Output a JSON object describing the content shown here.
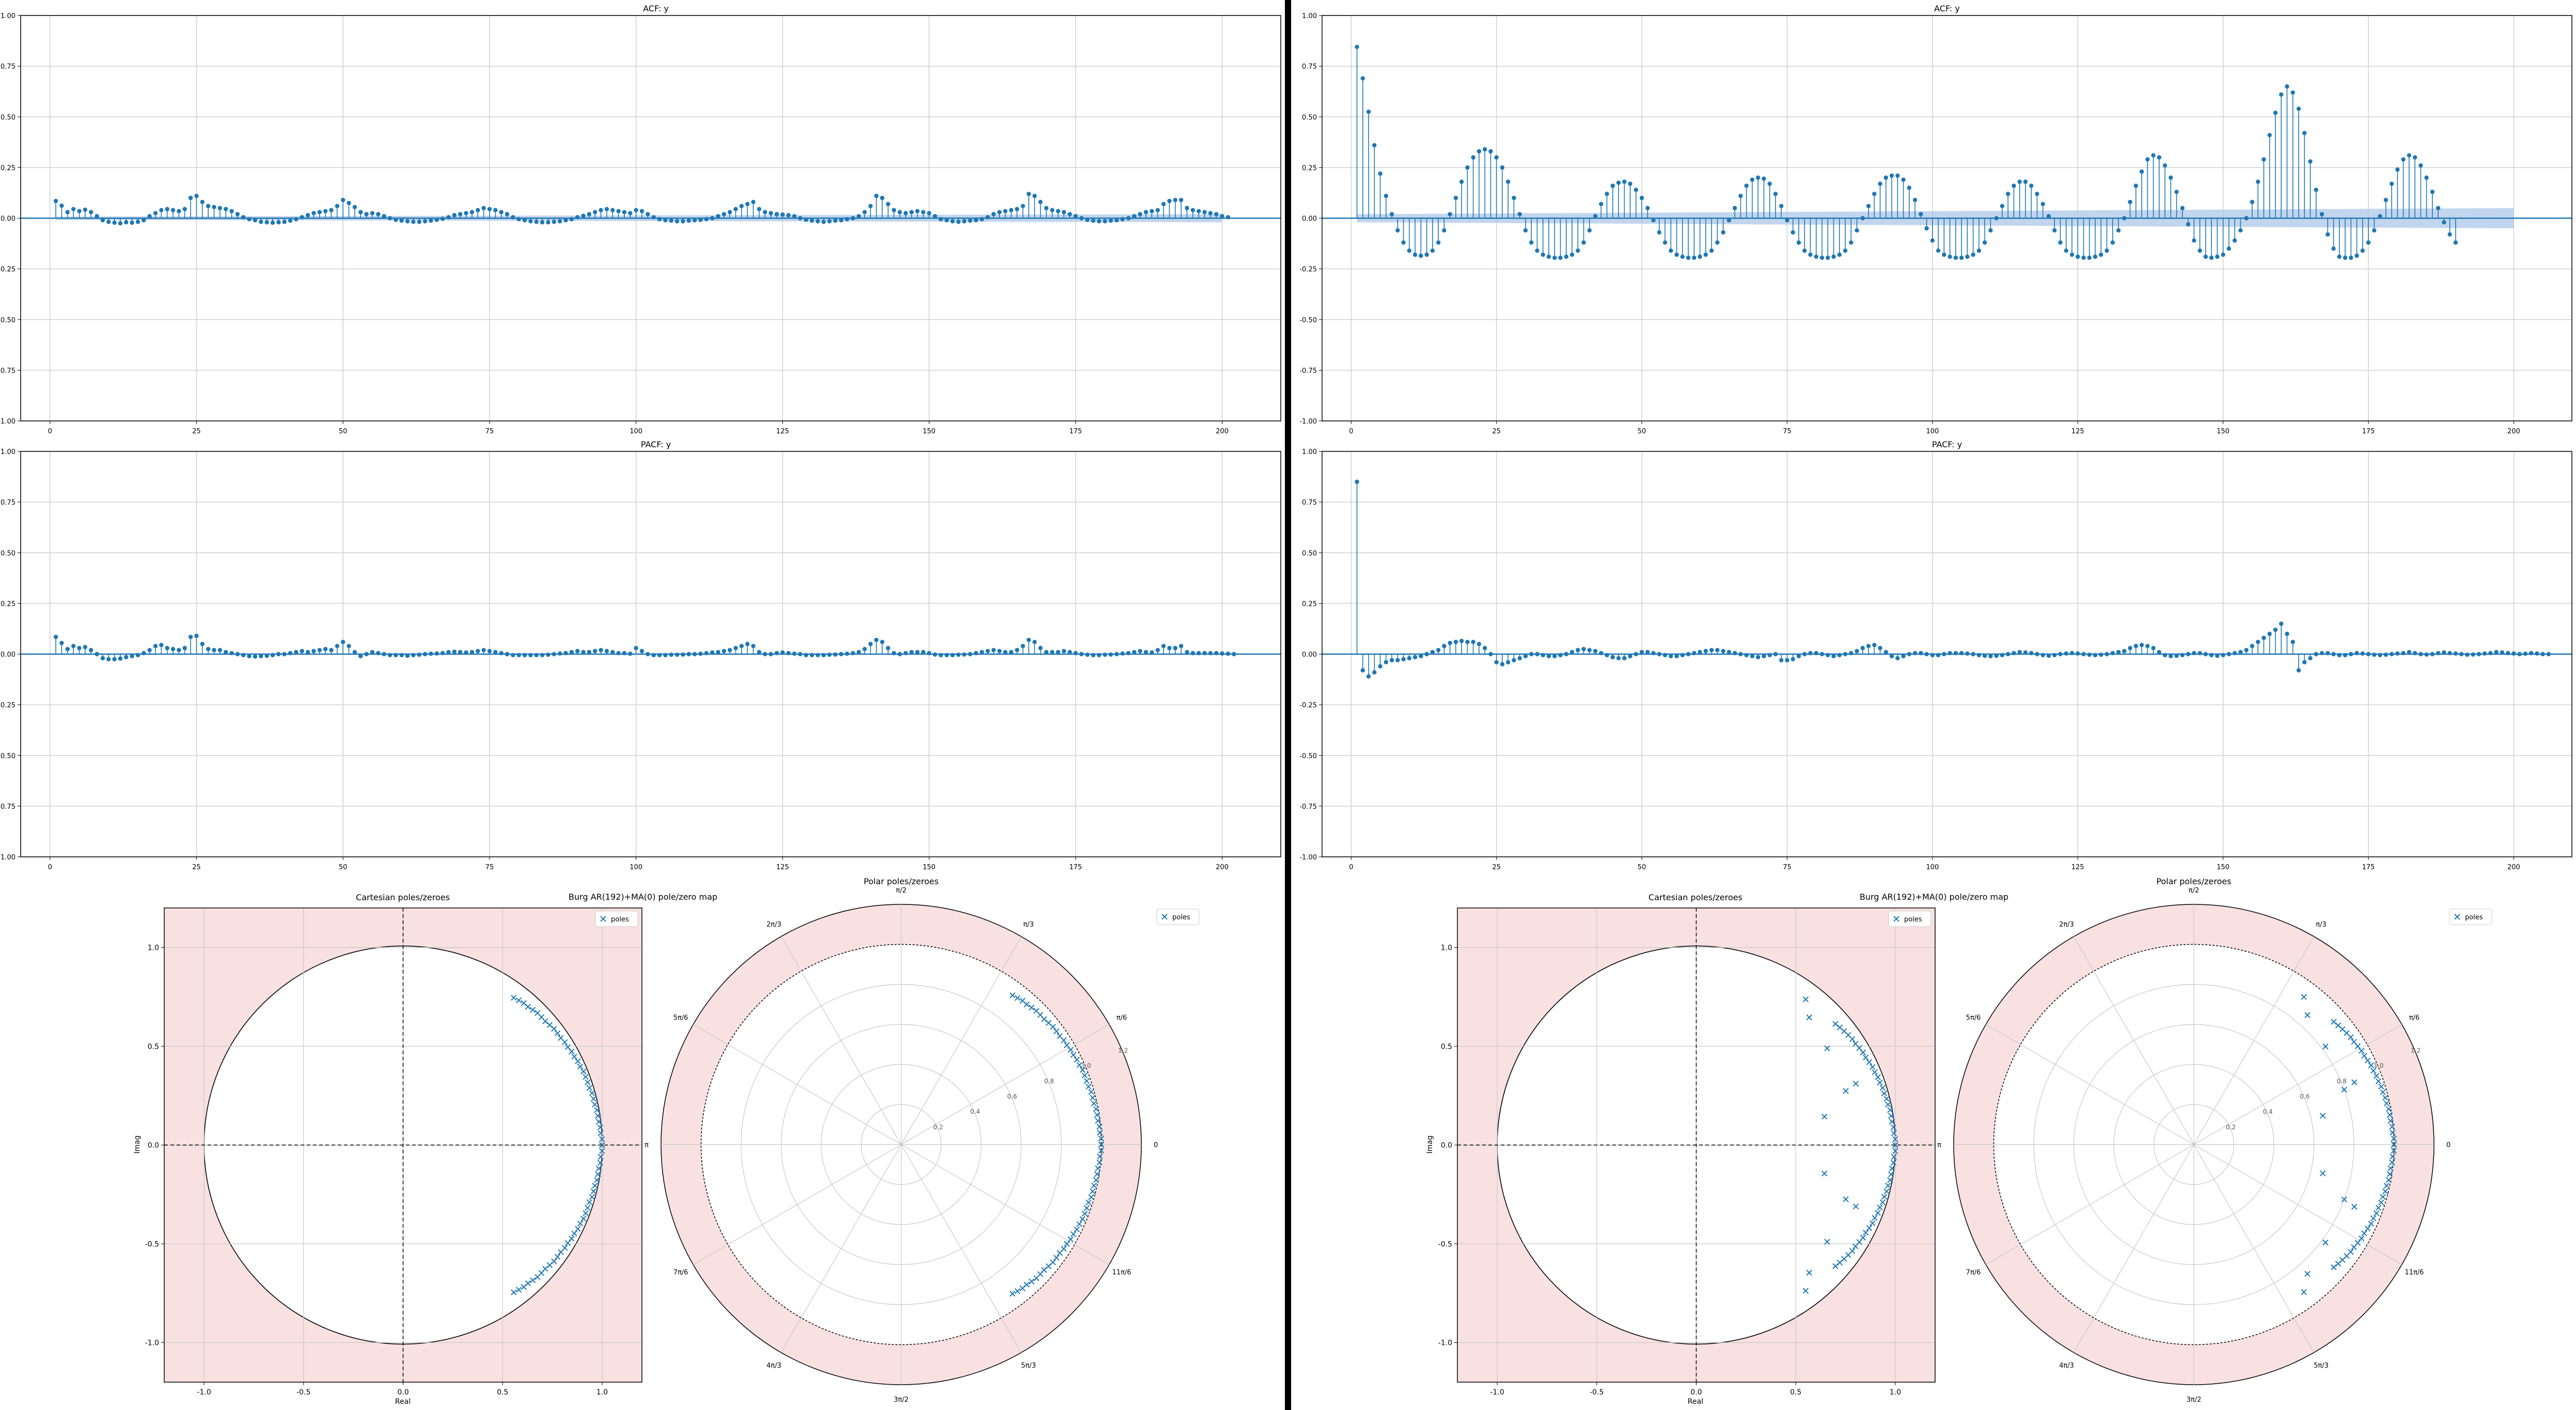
{
  "panels": {
    "left": {
      "acf": {
        "title": "ACF: y",
        "type": "stem",
        "ylim": [
          -1.0,
          1.0
        ],
        "xlim": [
          -5,
          210
        ],
        "yticks": [
          "-1.00",
          "-0.75",
          "-0.50",
          "-0.25",
          "0.00",
          "0.25",
          "0.50",
          "0.75",
          "1.00"
        ],
        "xticks": [
          "0",
          "25",
          "50",
          "75",
          "100",
          "125",
          "150",
          "175",
          "200"
        ],
        "grid": true,
        "confidence_band": 0.02,
        "color": "#1f77b4",
        "band_color": "#aec7e8"
      },
      "pacf": {
        "title": "PACF: y",
        "type": "stem",
        "ylim": [
          -1.0,
          1.0
        ],
        "xlim": [
          -5,
          210
        ],
        "yticks": [
          "-1.00",
          "-0.75",
          "-0.50",
          "-0.25",
          "0.00",
          "0.25",
          "0.50",
          "0.75",
          "1.00"
        ],
        "xticks": [
          "0",
          "25",
          "50",
          "75",
          "100",
          "125",
          "150",
          "175",
          "200"
        ],
        "grid": true,
        "color": "#1f77b4"
      },
      "polezero": {
        "suptitle": "Burg AR(192)+MA(0) pole/zero map",
        "cartesian_title": "Cartesian poles/zeroes",
        "polar_title": "Polar poles/zeroes",
        "xlabel": "Real",
        "ylabel": "Imag",
        "xticks": [
          "-1.0",
          "-0.5",
          "0.0",
          "0.5",
          "1.0"
        ],
        "yticks": [
          "-1.0",
          "-0.5",
          "0.0",
          "0.5",
          "1.0"
        ],
        "radial_ticks": [
          "0.2",
          "0.4",
          "0.6",
          "0.8",
          "1.0",
          "1.2"
        ],
        "legend": "poles",
        "outside_color": "#f9e1e1"
      }
    },
    "right": {
      "acf": {
        "title": "ACF: y",
        "type": "stem",
        "ylim": [
          -1.0,
          1.0
        ],
        "xlim": [
          -5,
          210
        ],
        "yticks": [
          "-1.00",
          "-0.75",
          "-0.50",
          "-0.25",
          "0.00",
          "0.25",
          "0.50",
          "0.75",
          "1.00"
        ],
        "xticks": [
          "0",
          "25",
          "50",
          "75",
          "100",
          "125",
          "150",
          "175",
          "200"
        ],
        "grid": true,
        "confidence_band": 0.05,
        "color": "#1f77b4",
        "band_color": "#aec7e8"
      },
      "pacf": {
        "title": "PACF: y",
        "type": "stem",
        "ylim": [
          -1.0,
          1.0
        ],
        "xlim": [
          -5,
          210
        ],
        "yticks": [
          "-1.00",
          "-0.75",
          "-0.50",
          "-0.25",
          "0.00",
          "0.25",
          "0.50",
          "0.75",
          "1.00"
        ],
        "xticks": [
          "0",
          "25",
          "50",
          "75",
          "100",
          "125",
          "150",
          "175",
          "200"
        ],
        "grid": true,
        "color": "#1f77b4"
      },
      "polezero": {
        "suptitle": "Burg AR(192)+MA(0) pole/zero map",
        "cartesian_title": "Cartesian poles/zeroes",
        "polar_title": "Polar poles/zeroes",
        "xlabel": "Real",
        "ylabel": "Imag",
        "xticks": [
          "-1.0",
          "-0.5",
          "0.0",
          "0.5",
          "1.0"
        ],
        "yticks": [
          "-1.0",
          "-0.5",
          "0.0",
          "0.5",
          "1.0"
        ],
        "radial_ticks": [
          "0.2",
          "0.4",
          "0.6",
          "0.8",
          "1.0",
          "1.2"
        ],
        "legend": "poles",
        "outside_color": "#f9e1e1"
      }
    }
  },
  "polar_angle_labels": [
    "0",
    "π/6",
    "π/3",
    "π/2",
    "2π/3",
    "5π/6",
    "π",
    "7π/6",
    "4π/3",
    "3π/2",
    "5π/3",
    "11π/6"
  ],
  "chart_data": [
    {
      "id": "left-acf",
      "type": "stem",
      "title": "ACF: y",
      "lags": {
        "start": 1,
        "end": 200
      },
      "values": [
        0.085,
        0.062,
        0.03,
        0.045,
        0.035,
        0.042,
        0.03,
        0.01,
        -0.01,
        -0.018,
        -0.022,
        -0.025,
        -0.02,
        -0.022,
        -0.018,
        -0.01,
        0.01,
        0.025,
        0.04,
        0.045,
        0.04,
        0.035,
        0.045,
        0.1,
        0.11,
        0.08,
        0.06,
        0.055,
        0.05,
        0.045,
        0.035,
        0.02,
        0.005,
        -0.005,
        -0.01,
        -0.018,
        -0.02,
        -0.022,
        -0.02,
        -0.018,
        -0.012,
        -0.005,
        0.005,
        0.015,
        0.025,
        0.03,
        0.035,
        0.04,
        0.06,
        0.09,
        0.075,
        0.055,
        0.03,
        0.02,
        0.025,
        0.02,
        0.01,
        0.0,
        -0.008,
        -0.012,
        -0.015,
        -0.018,
        -0.018,
        -0.015,
        -0.012,
        -0.008,
        -0.003,
        0.005,
        0.015,
        0.02,
        0.025,
        0.03,
        0.04,
        0.05,
        0.045,
        0.04,
        0.03,
        0.02,
        0.005,
        -0.005,
        -0.01,
        -0.015,
        -0.018,
        -0.02,
        -0.02,
        -0.018,
        -0.015,
        -0.01,
        -0.005,
        0.005,
        0.012,
        0.02,
        0.03,
        0.04,
        0.045,
        0.04,
        0.035,
        0.03,
        0.025,
        0.04,
        0.035,
        0.02,
        0.005,
        -0.005,
        -0.01,
        -0.012,
        -0.015,
        -0.015,
        -0.012,
        -0.01,
        -0.008,
        -0.005,
        0.0,
        0.01,
        0.02,
        0.03,
        0.045,
        0.06,
        0.07,
        0.08,
        0.045,
        0.03,
        0.025,
        0.02,
        0.018,
        0.015,
        0.01,
        0.0,
        -0.008,
        -0.012,
        -0.015,
        -0.018,
        -0.015,
        -0.012,
        -0.01,
        -0.005,
        0.0,
        0.01,
        0.03,
        0.06,
        0.11,
        0.1,
        0.07,
        0.04,
        0.03,
        0.025,
        0.03,
        0.035,
        0.03,
        0.025,
        0.01,
        -0.005,
        -0.01,
        -0.015,
        -0.018,
        -0.015,
        -0.012,
        -0.01,
        -0.005,
        0.005,
        0.02,
        0.03,
        0.035,
        0.04,
        0.045,
        0.06,
        0.12,
        0.11,
        0.08,
        0.05,
        0.04,
        0.035,
        0.03,
        0.02,
        0.01,
        0.0,
        -0.008,
        -0.012,
        -0.015,
        -0.015,
        -0.012,
        -0.01,
        -0.005,
        0.0,
        0.01,
        0.02,
        0.03,
        0.035,
        0.04,
        0.07,
        0.085,
        0.09,
        0.09,
        0.05,
        0.04,
        0.035,
        0.03,
        0.025,
        0.02,
        0.01,
        0.005
      ]
    },
    {
      "id": "left-pacf",
      "type": "stem",
      "title": "PACF: y",
      "lags": {
        "start": 1,
        "end": 200
      },
      "values": [
        0.085,
        0.055,
        0.025,
        0.04,
        0.03,
        0.035,
        0.02,
        0.0,
        -0.02,
        -0.025,
        -0.025,
        -0.022,
        -0.015,
        -0.01,
        -0.005,
        0.005,
        0.02,
        0.04,
        0.045,
        0.03,
        0.025,
        0.02,
        0.03,
        0.085,
        0.09,
        0.05,
        0.025,
        0.02,
        0.02,
        0.01,
        0.005,
        0.0,
        -0.005,
        -0.01,
        -0.012,
        -0.01,
        -0.008,
        -0.005,
        0.0,
        0.0,
        0.005,
        0.01,
        0.015,
        0.01,
        0.015,
        0.02,
        0.025,
        0.02,
        0.04,
        0.06,
        0.04,
        0.01,
        -0.01,
        0.0,
        0.01,
        0.005,
        0.0,
        -0.005,
        -0.005,
        -0.005,
        -0.008,
        -0.005,
        -0.003,
        0.0,
        0.002,
        0.003,
        0.005,
        0.01,
        0.012,
        0.01,
        0.008,
        0.01,
        0.015,
        0.02,
        0.015,
        0.01,
        0.005,
        0.0,
        -0.005,
        -0.005,
        -0.005,
        -0.005,
        -0.005,
        -0.005,
        -0.003,
        0.0,
        0.003,
        0.005,
        0.01,
        0.015,
        0.01,
        0.01,
        0.015,
        0.02,
        0.015,
        0.01,
        0.005,
        0.005,
        0.002,
        0.03,
        0.015,
        0.0,
        -0.005,
        -0.005,
        -0.005,
        -0.003,
        -0.003,
        -0.002,
        0.0,
        0.0,
        0.002,
        0.005,
        0.008,
        0.01,
        0.015,
        0.02,
        0.03,
        0.04,
        0.05,
        0.04,
        0.01,
        0.0,
        0.0,
        0.005,
        0.008,
        0.005,
        0.002,
        0.0,
        -0.005,
        -0.005,
        -0.005,
        -0.005,
        -0.003,
        -0.002,
        0.0,
        0.002,
        0.005,
        0.01,
        0.025,
        0.05,
        0.07,
        0.06,
        0.03,
        0.005,
        0.0,
        0.005,
        0.01,
        0.01,
        0.01,
        0.005,
        -0.002,
        -0.005,
        -0.005,
        -0.005,
        -0.003,
        -0.002,
        0.0,
        0.005,
        0.01,
        0.015,
        0.02,
        0.015,
        0.01,
        0.01,
        0.02,
        0.04,
        0.07,
        0.06,
        0.03,
        0.01,
        0.01,
        0.01,
        0.015,
        0.01,
        0.005,
        0.0,
        -0.003,
        -0.005,
        -0.005,
        -0.003,
        -0.002,
        0.0,
        0.003,
        0.005,
        0.01,
        0.015,
        0.01,
        0.008,
        0.02,
        0.04,
        0.03,
        0.03,
        0.04,
        0.01,
        0.005,
        0.005,
        0.005,
        0.005,
        0.005,
        0.003,
        0.002,
        0.0
      ]
    },
    {
      "id": "right-acf",
      "type": "stem",
      "title": "ACF: y",
      "lags": {
        "start": 1,
        "end": 200
      },
      "values": [
        0.845,
        0.69,
        0.525,
        0.36,
        0.22,
        0.11,
        0.02,
        -0.06,
        -0.12,
        -0.16,
        -0.18,
        -0.185,
        -0.18,
        -0.16,
        -0.12,
        -0.06,
        0.02,
        0.1,
        0.18,
        0.25,
        0.3,
        0.33,
        0.34,
        0.33,
        0.3,
        0.25,
        0.18,
        0.1,
        0.02,
        -0.06,
        -0.12,
        -0.16,
        -0.18,
        -0.19,
        -0.195,
        -0.195,
        -0.19,
        -0.18,
        -0.16,
        -0.12,
        -0.06,
        0.01,
        0.07,
        0.12,
        0.16,
        0.175,
        0.18,
        0.17,
        0.14,
        0.1,
        0.05,
        -0.01,
        -0.07,
        -0.12,
        -0.16,
        -0.18,
        -0.19,
        -0.195,
        -0.195,
        -0.19,
        -0.18,
        -0.16,
        -0.12,
        -0.07,
        -0.01,
        0.05,
        0.11,
        0.16,
        0.19,
        0.2,
        0.195,
        0.17,
        0.12,
        0.06,
        -0.01,
        -0.07,
        -0.12,
        -0.16,
        -0.18,
        -0.19,
        -0.195,
        -0.195,
        -0.19,
        -0.18,
        -0.16,
        -0.12,
        -0.06,
        0.0,
        0.06,
        0.12,
        0.17,
        0.2,
        0.21,
        0.21,
        0.19,
        0.15,
        0.09,
        0.02,
        -0.05,
        -0.11,
        -0.16,
        -0.18,
        -0.19,
        -0.195,
        -0.195,
        -0.19,
        -0.18,
        -0.16,
        -0.12,
        -0.06,
        0.0,
        0.06,
        0.12,
        0.16,
        0.18,
        0.18,
        0.16,
        0.12,
        0.07,
        0.01,
        -0.06,
        -0.12,
        -0.16,
        -0.18,
        -0.19,
        -0.195,
        -0.195,
        -0.19,
        -0.18,
        -0.16,
        -0.12,
        -0.06,
        0.0,
        0.08,
        0.16,
        0.23,
        0.29,
        0.31,
        0.3,
        0.26,
        0.2,
        0.13,
        0.05,
        -0.03,
        -0.11,
        -0.16,
        -0.19,
        -0.195,
        -0.19,
        -0.18,
        -0.15,
        -0.11,
        -0.06,
        0.0,
        0.08,
        0.18,
        0.29,
        0.41,
        0.52,
        0.61,
        0.65,
        0.62,
        0.54,
        0.42,
        0.28,
        0.14,
        0.02,
        -0.08,
        -0.15,
        -0.19,
        -0.195,
        -0.195,
        -0.185,
        -0.16,
        -0.12,
        -0.06,
        0.01,
        0.09,
        0.17,
        0.24,
        0.29,
        0.31,
        0.3,
        0.26,
        0.2,
        0.13,
        0.05,
        -0.02,
        -0.08,
        -0.12
      ]
    },
    {
      "id": "right-pacf",
      "type": "stem",
      "title": "PACF: y",
      "lags": {
        "start": 1,
        "end": 200
      },
      "values": [
        0.85,
        -0.08,
        -0.11,
        -0.09,
        -0.06,
        -0.04,
        -0.03,
        -0.03,
        -0.025,
        -0.02,
        -0.015,
        -0.01,
        0.0,
        0.01,
        0.02,
        0.04,
        0.055,
        0.06,
        0.065,
        0.06,
        0.06,
        0.05,
        0.03,
        0.0,
        -0.04,
        -0.05,
        -0.04,
        -0.03,
        -0.02,
        -0.01,
        0.0,
        0.0,
        -0.005,
        -0.01,
        -0.01,
        -0.005,
        0.0,
        0.01,
        0.02,
        0.025,
        0.02,
        0.015,
        0.005,
        -0.005,
        -0.015,
        -0.02,
        -0.02,
        -0.01,
        0.0,
        0.01,
        0.01,
        0.005,
        0.0,
        -0.005,
        -0.01,
        -0.01,
        -0.005,
        0.0,
        0.005,
        0.01,
        0.015,
        0.02,
        0.02,
        0.015,
        0.01,
        0.005,
        0.0,
        -0.005,
        -0.01,
        -0.015,
        -0.01,
        -0.005,
        0.0,
        -0.03,
        -0.03,
        -0.025,
        -0.01,
        0.0,
        0.005,
        0.005,
        0.0,
        -0.005,
        -0.01,
        -0.005,
        0.0,
        0.005,
        0.015,
        0.03,
        0.04,
        0.045,
        0.03,
        0.01,
        -0.01,
        -0.02,
        -0.01,
        0.0,
        0.005,
        0.005,
        0.0,
        -0.005,
        -0.005,
        0.0,
        0.005,
        0.005,
        0.005,
        0.003,
        0.0,
        -0.005,
        -0.008,
        -0.01,
        -0.008,
        -0.005,
        0.0,
        0.005,
        0.01,
        0.008,
        0.005,
        0.0,
        -0.005,
        -0.008,
        -0.005,
        0.0,
        0.003,
        0.005,
        0.003,
        0.0,
        -0.003,
        -0.005,
        -0.003,
        0.0,
        0.005,
        0.01,
        0.015,
        0.03,
        0.04,
        0.045,
        0.04,
        0.03,
        0.01,
        -0.005,
        -0.01,
        -0.008,
        -0.005,
        0.0,
        0.005,
        0.005,
        0.0,
        -0.005,
        -0.008,
        -0.005,
        0.0,
        0.005,
        0.01,
        0.02,
        0.04,
        0.06,
        0.08,
        0.1,
        0.12,
        0.15,
        0.1,
        0.06,
        -0.08,
        -0.04,
        -0.02,
        0.0,
        0.005,
        0.005,
        0.0,
        -0.005,
        -0.005,
        0.0,
        0.005,
        0.003,
        0.0,
        -0.003,
        -0.005,
        -0.003,
        0.0,
        0.003,
        0.005,
        0.01,
        0.005,
        0.0,
        -0.002,
        0.0,
        0.005,
        0.008,
        0.005,
        0.003,
        0.0,
        -0.003,
        -0.002,
        0.0,
        0.003,
        0.005,
        0.01,
        0.008,
        0.005,
        0.003,
        0.0,
        0.002,
        0.005,
        0.003,
        0.0,
        0.0
      ]
    },
    {
      "id": "left-polezero",
      "type": "scatter",
      "title": "Burg AR(192)+MA(0) pole/zero map",
      "series": [
        {
          "name": "poles",
          "description": "pole pairs (conjugate, mirrored about the real axis), as modulus and angle in radians",
          "modulus": [
            1.0,
            1.0,
            0.995,
            0.995,
            0.99,
            0.99,
            0.99,
            0.985,
            0.985,
            0.985,
            0.98,
            0.98,
            0.98,
            0.98,
            0.975,
            0.975,
            0.97,
            0.97,
            0.965,
            0.965,
            0.96,
            0.96,
            0.96,
            0.955,
            0.95,
            0.95,
            0.95,
            0.945,
            0.94,
            0.94,
            0.935,
            0.93
          ],
          "angle": [
            0.0,
            0.03,
            0.06,
            0.09,
            0.12,
            0.15,
            0.18,
            0.21,
            0.24,
            0.27,
            0.3,
            0.33,
            0.36,
            0.39,
            0.42,
            0.45,
            0.48,
            0.51,
            0.54,
            0.57,
            0.6,
            0.63,
            0.66,
            0.69,
            0.72,
            0.75,
            0.78,
            0.81,
            0.84,
            0.87,
            0.9,
            0.93
          ]
        }
      ]
    },
    {
      "id": "right-polezero",
      "type": "scatter",
      "title": "Burg AR(192)+MA(0) pole/zero map",
      "series": [
        {
          "name": "poles",
          "description": "pole pairs (conjugate, mirrored about the real axis), as modulus and angle in radians",
          "modulus": [
            1.0,
            1.0,
            0.995,
            0.995,
            0.99,
            0.99,
            0.99,
            0.985,
            0.985,
            0.98,
            0.98,
            0.975,
            0.975,
            0.97,
            0.97,
            0.965,
            0.96,
            0.96,
            0.955,
            0.95,
            0.95,
            0.945,
            0.94,
            0.935,
            0.93,
            0.8,
            0.66,
            0.82,
            0.86,
            0.92,
            0.86
          ],
          "angle": [
            0.0,
            0.03,
            0.06,
            0.09,
            0.12,
            0.15,
            0.18,
            0.21,
            0.24,
            0.27,
            0.3,
            0.33,
            0.36,
            0.39,
            0.42,
            0.45,
            0.48,
            0.51,
            0.54,
            0.57,
            0.6,
            0.63,
            0.66,
            0.69,
            0.72,
            0.35,
            0.22,
            0.64,
            0.85,
            0.93,
            0.37
          ]
        }
      ]
    }
  ]
}
